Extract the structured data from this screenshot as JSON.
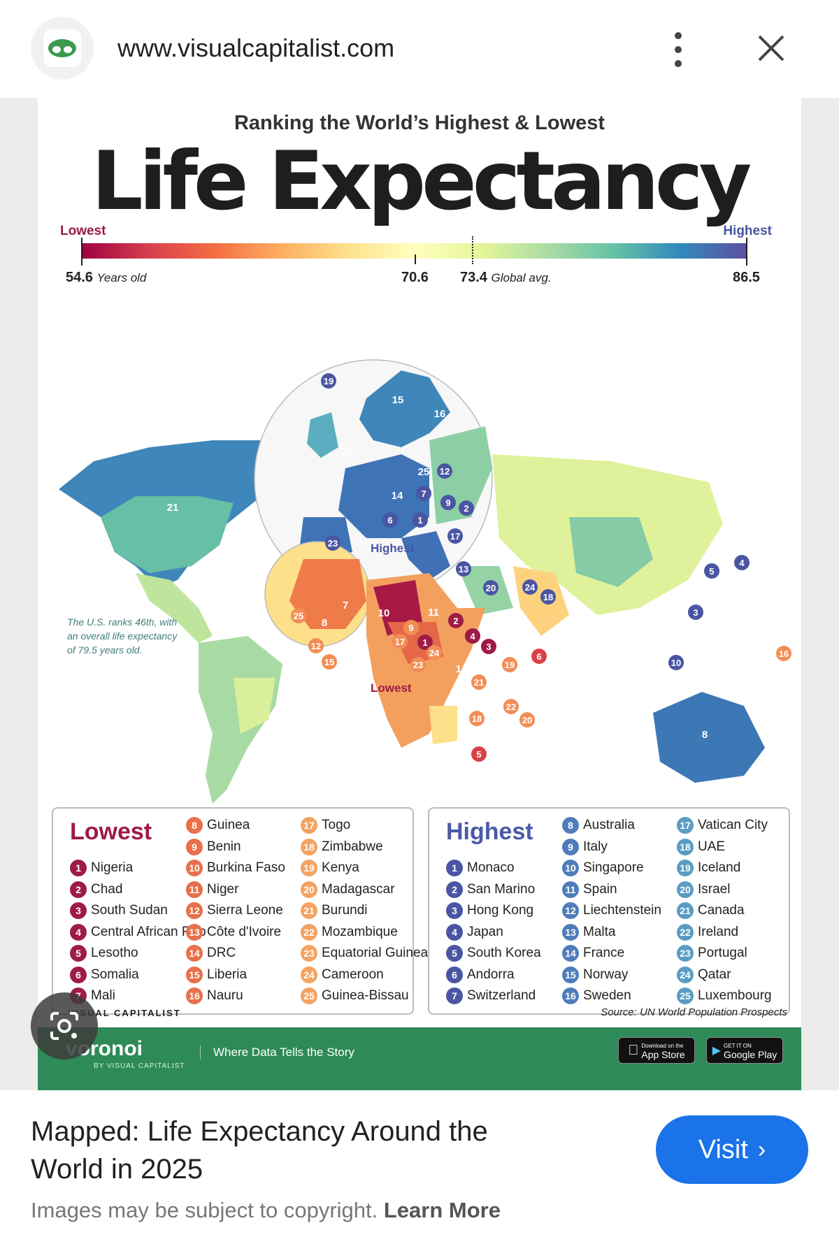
{
  "browser": {
    "url": "www.visualcapitalist.com"
  },
  "infographic": {
    "subtitle": "Ranking the World’s Highest & Lowest",
    "title": "Life Expectancy",
    "scale": {
      "low_label": "Lowest",
      "high_label": "Highest",
      "min_value": "54.6",
      "min_unit": "Years old",
      "mid_value": "70.6",
      "avg_value": "73.4",
      "avg_unit": "Global avg.",
      "max_value": "86.5"
    },
    "map_annotations": {
      "highest": "Highest",
      "lowest": "Lowest",
      "us_note": "The U.S. ranks 46th, with an overall life expectancy of 79.5 years old."
    },
    "lowest": {
      "heading": "Lowest",
      "color": "#9e1b46",
      "items": [
        "Nigeria",
        "Chad",
        "South Sudan",
        "Central African Rep",
        "Lesotho",
        "Somalia",
        "Mali",
        "Guinea",
        "Benin",
        "Burkina Faso",
        "Niger",
        "Sierra Leone",
        "Côte d'Ivoire",
        "DRC",
        "Liberia",
        "Nauru",
        "Togo",
        "Zimbabwe",
        "Kenya",
        "Madagascar",
        "Burundi",
        "Mozambique",
        "Equatorial Guinea",
        "Cameroon",
        "Guinea-Bissau"
      ]
    },
    "highest": {
      "heading": "Highest",
      "color": "#4a5aa8",
      "items": [
        "Monaco",
        "San Marino",
        "Hong Kong",
        "Japan",
        "South Korea",
        "Andorra",
        "Switzerland",
        "Australia",
        "Italy",
        "Singapore",
        "Spain",
        "Liechtenstein",
        "Malta",
        "France",
        "Norway",
        "Sweden",
        "Vatican City",
        "UAE",
        "Iceland",
        "Israel",
        "Canada",
        "Ireland",
        "Portugal",
        "Qatar",
        "Luxembourg"
      ]
    },
    "brand": "VISUAL CAPITALIST",
    "source": "Source: UN World Population Prospects",
    "footer": {
      "voronoi": "voronoi",
      "voronoi_sub": "BY VISUAL CAPITALIST",
      "tagline": "Where Data Tells the Story",
      "app_store": "App Store",
      "app_store_pre": "Download on the",
      "google_play": "Google Play",
      "google_play_pre": "GET IT ON"
    }
  },
  "card": {
    "caption": "Mapped: Life Expectancy Around the World in 2025",
    "visit_label": "Visit",
    "copyright": "Images may be subject to copyright.",
    "learn_more": "Learn More"
  }
}
